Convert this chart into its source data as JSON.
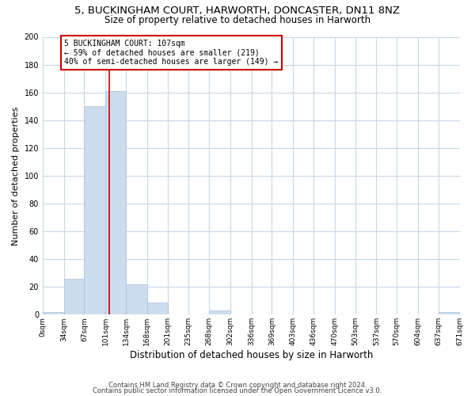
{
  "title": "5, BUCKINGHAM COURT, HARWORTH, DONCASTER, DN11 8NZ",
  "subtitle": "Size of property relative to detached houses in Harworth",
  "xlabel": "Distribution of detached houses by size in Harworth",
  "ylabel": "Number of detached properties",
  "bar_edges": [
    0,
    34,
    67,
    101,
    134,
    168,
    201,
    235,
    268,
    302,
    336,
    369,
    403,
    436,
    470,
    503,
    537,
    570,
    604,
    637,
    671
  ],
  "bar_heights": [
    2,
    26,
    150,
    161,
    22,
    9,
    0,
    0,
    3,
    0,
    0,
    0,
    0,
    0,
    0,
    0,
    0,
    0,
    0,
    2
  ],
  "bar_color": "#ccddf0",
  "bar_edgecolor": "#aabfd8",
  "ylim": [
    0,
    200
  ],
  "yticks": [
    0,
    20,
    40,
    60,
    80,
    100,
    120,
    140,
    160,
    180,
    200
  ],
  "property_line_x": 107,
  "property_line_color": "#cc0000",
  "annotation_line1": "5 BUCKINGHAM COURT: 107sqm",
  "annotation_line2": "← 59% of detached houses are smaller (219)",
  "annotation_line3": "40% of semi-detached houses are larger (149) →",
  "annotation_box_color": "#cc0000",
  "annotation_box_bg": "#ffffff",
  "footer_line1": "Contains HM Land Registry data © Crown copyright and database right 2024.",
  "footer_line2": "Contains public sector information licensed under the Open Government Licence v3.0.",
  "bg_color": "#ffffff",
  "grid_color": "#c8d8e8",
  "title_fontsize": 9.5,
  "subtitle_fontsize": 8.5,
  "axis_label_fontsize": 8,
  "tick_fontsize": 6.5,
  "footer_fontsize": 6,
  "tick_labels": [
    "0sqm",
    "34sqm",
    "67sqm",
    "101sqm",
    "134sqm",
    "168sqm",
    "201sqm",
    "235sqm",
    "268sqm",
    "302sqm",
    "336sqm",
    "369sqm",
    "403sqm",
    "436sqm",
    "470sqm",
    "503sqm",
    "537sqm",
    "570sqm",
    "604sqm",
    "637sqm",
    "671sqm"
  ]
}
